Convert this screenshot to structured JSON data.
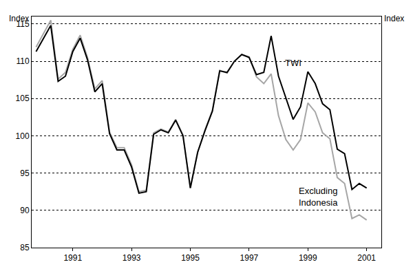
{
  "chart_data": {
    "type": "line",
    "y_label": "Index",
    "y2_label": "Index",
    "x": [
      1989.75,
      1990.0,
      1990.25,
      1990.5,
      1990.75,
      1991.0,
      1991.25,
      1991.5,
      1991.75,
      1992.0,
      1992.25,
      1992.5,
      1992.75,
      1993.0,
      1993.25,
      1993.5,
      1993.75,
      1994.0,
      1994.25,
      1994.5,
      1994.75,
      1995.0,
      1995.25,
      1995.5,
      1995.75,
      1996.0,
      1996.25,
      1996.5,
      1996.75,
      1997.0,
      1997.25,
      1997.5,
      1997.75,
      1998.0,
      1998.25,
      1998.5,
      1998.75,
      1999.0,
      1999.25,
      1999.5,
      1999.75,
      2000.0,
      2000.25,
      2000.5,
      2000.75,
      2001.0
    ],
    "series": [
      {
        "name": "Excluding Indonesia",
        "color": "#a6a6a6",
        "values": [
          111.9,
          113.7,
          115.5,
          107.6,
          108.5,
          111.6,
          113.5,
          110.5,
          106.3,
          107.4,
          100.5,
          98.4,
          98.4,
          96.1,
          92.5,
          92.7,
          100.4,
          100.9,
          100.5,
          102.2,
          100.1,
          93.0,
          97.8,
          100.8,
          103.4,
          108.8,
          108.4,
          110.0,
          110.9,
          110.6,
          107.9,
          107.0,
          108.3,
          102.7,
          99.5,
          98.1,
          99.5,
          104.4,
          103.2,
          100.4,
          99.6,
          94.4,
          93.6,
          88.9,
          89.4,
          88.7
        ]
      },
      {
        "name": "TWI",
        "color": "#000000",
        "values": [
          111.3,
          113.0,
          114.8,
          107.3,
          108.0,
          111.3,
          113.1,
          110.2,
          105.9,
          107.0,
          100.3,
          98.1,
          98.1,
          95.8,
          92.3,
          92.5,
          100.2,
          100.8,
          100.4,
          102.1,
          100.0,
          93.0,
          97.8,
          100.7,
          103.3,
          108.7,
          108.5,
          110.0,
          110.9,
          110.5,
          108.2,
          108.5,
          113.4,
          108.0,
          105.0,
          102.2,
          103.9,
          108.6,
          107.0,
          104.3,
          103.5,
          98.2,
          97.6,
          92.8,
          93.6,
          93.0
        ]
      }
    ],
    "xlim": [
      1989.6,
      2001.5
    ],
    "xticks": [
      1991,
      1993,
      1995,
      1997,
      1999,
      2001
    ],
    "ylim": [
      85,
      116
    ],
    "yticks": [
      85,
      90,
      95,
      100,
      105,
      110,
      115
    ],
    "y2lim": [
      85,
      116
    ],
    "y2ticks": [
      85,
      90,
      95,
      100,
      105,
      110,
      115
    ],
    "grid": true
  }
}
